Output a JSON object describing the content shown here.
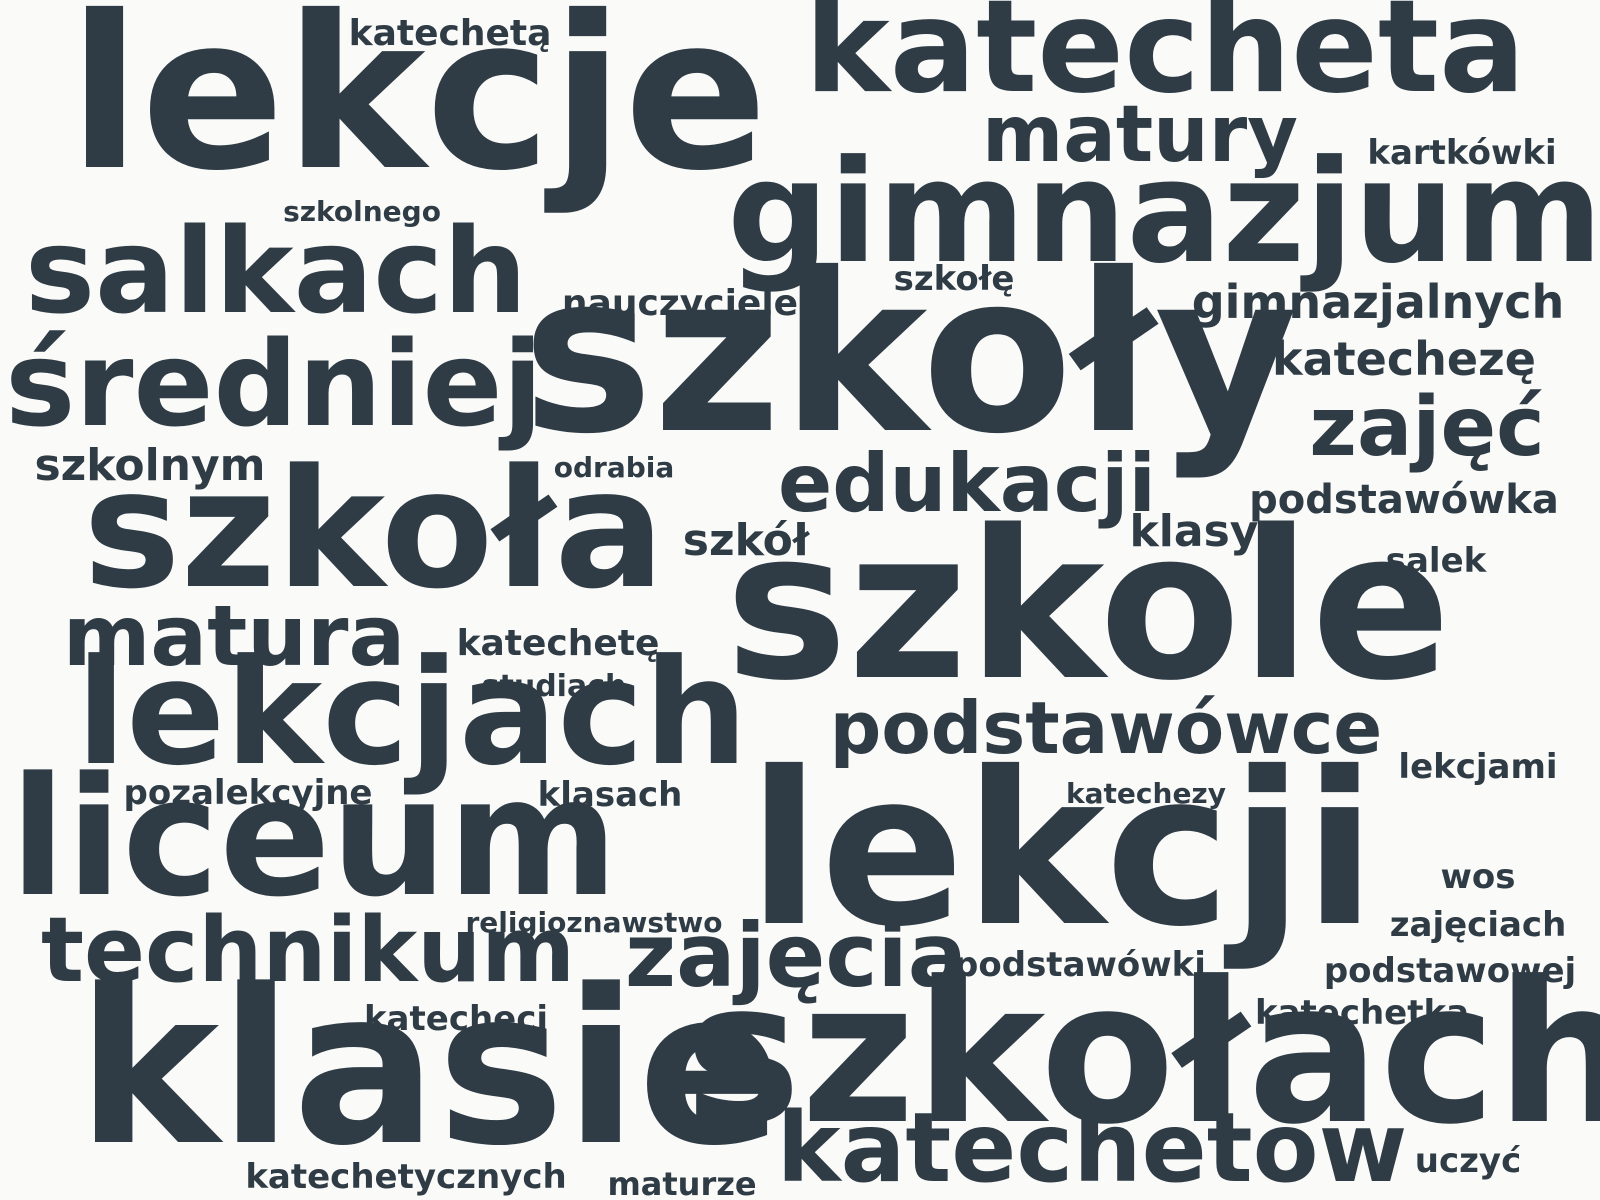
{
  "word_color": "#2f3c45",
  "background_color": "#fafaf8",
  "words": [
    {
      "id": "lekcje",
      "text": "lekcje"
    },
    {
      "id": "katecheta",
      "text": "katecheta"
    },
    {
      "id": "szkoly",
      "text": "szkoły"
    },
    {
      "id": "szkole",
      "text": "szkole"
    },
    {
      "id": "lekcji",
      "text": "lekcji"
    },
    {
      "id": "klasie",
      "text": "klasie"
    },
    {
      "id": "szkolach",
      "text": "szkołach"
    },
    {
      "id": "gimnazjum",
      "text": "gimnazjum"
    },
    {
      "id": "szkola",
      "text": "szkoła"
    },
    {
      "id": "liceum",
      "text": "liceum"
    },
    {
      "id": "lekcjach",
      "text": "lekcjach"
    },
    {
      "id": "sredniej",
      "text": "średniej"
    },
    {
      "id": "salkach",
      "text": "salkach"
    },
    {
      "id": "katechetow",
      "text": "katechetów"
    },
    {
      "id": "technikum",
      "text": "technikum"
    },
    {
      "id": "matura",
      "text": "matura"
    },
    {
      "id": "zajecia",
      "text": "zajęcia"
    },
    {
      "id": "edukacji",
      "text": "edukacji"
    },
    {
      "id": "podstawowce",
      "text": "podstawówce"
    },
    {
      "id": "matury",
      "text": "matury"
    },
    {
      "id": "zajec",
      "text": "zajęć"
    },
    {
      "id": "katecheze",
      "text": "katechezę"
    },
    {
      "id": "gimnazjalnych",
      "text": "gimnazjalnych"
    },
    {
      "id": "podstawowka",
      "text": "podstawówka"
    },
    {
      "id": "klasy",
      "text": "klasy"
    },
    {
      "id": "szkol",
      "text": "szkół"
    },
    {
      "id": "szkolnym",
      "text": "szkolnym"
    },
    {
      "id": "nauczyciele",
      "text": "nauczyciele"
    },
    {
      "id": "katechete",
      "text": "katechetę"
    },
    {
      "id": "katecheta2",
      "text": "katechetą"
    },
    {
      "id": "kartkowki",
      "text": "kartkówki"
    },
    {
      "id": "szkole2",
      "text": "szkołę"
    },
    {
      "id": "szkolnego",
      "text": "szkolnego"
    },
    {
      "id": "odrabia",
      "text": "odrabia"
    },
    {
      "id": "salek",
      "text": "salek"
    },
    {
      "id": "studiach",
      "text": "studiach"
    },
    {
      "id": "pozalekcyjne",
      "text": "pozalekcyjne"
    },
    {
      "id": "klasach",
      "text": "klasach"
    },
    {
      "id": "katechezy",
      "text": "katechezy"
    },
    {
      "id": "lekcjami",
      "text": "lekcjami"
    },
    {
      "id": "wos",
      "text": "wos"
    },
    {
      "id": "religioznawstwo",
      "text": "religioznawstwo"
    },
    {
      "id": "zajeciach",
      "text": "zajęciach"
    },
    {
      "id": "podstawowki",
      "text": "podstawówki"
    },
    {
      "id": "podstawowej",
      "text": "podstawowej"
    },
    {
      "id": "katecheci",
      "text": "katecheci"
    },
    {
      "id": "katechetka",
      "text": "katechetka"
    },
    {
      "id": "katechetycznych",
      "text": "katechetycznych"
    },
    {
      "id": "maturze",
      "text": "maturze"
    },
    {
      "id": "uczyc",
      "text": "uczyć"
    }
  ]
}
